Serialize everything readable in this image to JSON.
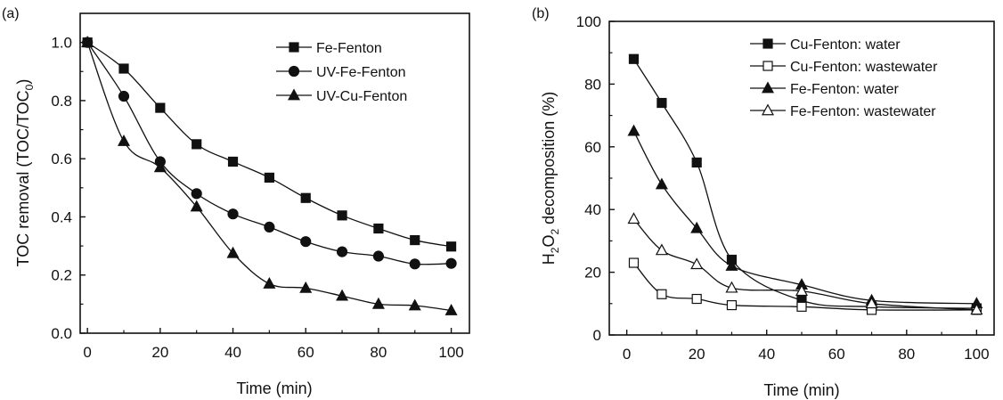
{
  "chart_data": [
    {
      "type": "line",
      "panel_label": "(a)",
      "xlabel": "Time (min)",
      "ylabel": "TOC removal (TOC/TOC",
      "ylabel_sub": "0",
      "ylabel_close": ")",
      "xlim": [
        -2,
        105
      ],
      "ylim": [
        0.0,
        1.1
      ],
      "xticks": [
        "0",
        "20",
        "40",
        "60",
        "80",
        "100"
      ],
      "xtick_values": [
        0,
        20,
        40,
        60,
        80,
        100
      ],
      "yticks": [
        "0.0",
        "0.2",
        "0.4",
        "0.6",
        "0.8",
        "1.0"
      ],
      "ytick_values": [
        0.0,
        0.2,
        0.4,
        0.6,
        0.8,
        1.0
      ],
      "legend_position": "top-right",
      "series": [
        {
          "name": "Fe-Fenton",
          "marker": "square",
          "filled": true,
          "x": [
            0,
            10,
            20,
            30,
            40,
            50,
            60,
            70,
            80,
            90,
            100
          ],
          "y": [
            1.0,
            0.91,
            0.775,
            0.65,
            0.59,
            0.535,
            0.465,
            0.405,
            0.36,
            0.32,
            0.298
          ]
        },
        {
          "name": "UV-Fe-Fenton",
          "marker": "circle",
          "filled": true,
          "x": [
            0,
            10,
            20,
            30,
            40,
            50,
            60,
            70,
            80,
            90,
            100
          ],
          "y": [
            1.0,
            0.815,
            0.59,
            0.48,
            0.41,
            0.365,
            0.315,
            0.28,
            0.265,
            0.238,
            0.24
          ]
        },
        {
          "name": "UV-Cu-Fenton",
          "marker": "triangle",
          "filled": true,
          "x": [
            0,
            10,
            20,
            30,
            40,
            50,
            60,
            70,
            80,
            90,
            100
          ],
          "y": [
            1.0,
            0.66,
            0.57,
            0.435,
            0.275,
            0.17,
            0.155,
            0.128,
            0.1,
            0.095,
            0.078
          ]
        }
      ]
    },
    {
      "type": "line",
      "panel_label": "(b)",
      "xlabel": "Time (min)",
      "ylabel_parts": [
        "H",
        "2",
        "O",
        "2",
        " decomposition (%)"
      ],
      "xlim": [
        -5,
        105
      ],
      "ylim": [
        0,
        100
      ],
      "xticks": [
        "0",
        "20",
        "40",
        "60",
        "80",
        "100"
      ],
      "xtick_values": [
        0,
        20,
        40,
        60,
        80,
        100
      ],
      "yticks": [
        "0",
        "20",
        "40",
        "60",
        "80",
        "100"
      ],
      "ytick_values": [
        0,
        20,
        40,
        60,
        80,
        100
      ],
      "legend_position": "top-right",
      "series": [
        {
          "name": "Cu-Fenton: water",
          "marker": "square",
          "filled": true,
          "x": [
            2,
            10,
            20,
            30,
            50,
            70,
            100
          ],
          "y": [
            88,
            74,
            55,
            24,
            11,
            9,
            8.5
          ]
        },
        {
          "name": "Cu-Fenton: wastewater",
          "marker": "square",
          "filled": false,
          "x": [
            2,
            10,
            20,
            30,
            50,
            70,
            100
          ],
          "y": [
            23,
            13,
            11.5,
            9.5,
            9,
            8,
            8
          ]
        },
        {
          "name": "Fe-Fenton: water",
          "marker": "triangle",
          "filled": true,
          "x": [
            2,
            10,
            20,
            30,
            50,
            70,
            100
          ],
          "y": [
            65,
            48,
            34,
            22,
            16,
            11,
            10
          ]
        },
        {
          "name": "Fe-Fenton: wastewater",
          "marker": "triangle",
          "filled": false,
          "x": [
            2,
            10,
            20,
            30,
            50,
            70,
            100
          ],
          "y": [
            37,
            27,
            22.5,
            15,
            14,
            10,
            8
          ]
        }
      ]
    }
  ]
}
